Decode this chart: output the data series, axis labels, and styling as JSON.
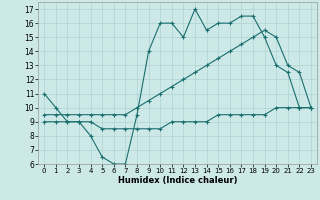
{
  "xlabel": "Humidex (Indice chaleur)",
  "bg_color": "#cce9e8",
  "grid_color": "#aed4d2",
  "line_color": "#1a6e6e",
  "xlim": [
    -0.5,
    23.5
  ],
  "ylim": [
    6,
    17.5
  ],
  "xticks": [
    0,
    1,
    2,
    3,
    4,
    5,
    6,
    7,
    8,
    9,
    10,
    11,
    12,
    13,
    14,
    15,
    16,
    17,
    18,
    19,
    20,
    21,
    22,
    23
  ],
  "yticks": [
    6,
    7,
    8,
    9,
    10,
    11,
    12,
    13,
    14,
    15,
    16,
    17
  ],
  "series": [
    {
      "x": [
        0,
        1,
        2,
        3,
        4,
        5,
        6,
        7,
        8,
        9,
        10,
        11,
        12,
        13,
        14,
        15,
        16,
        17,
        18,
        19,
        20,
        21,
        22,
        23
      ],
      "y": [
        11,
        10,
        9,
        9,
        8,
        6.5,
        6,
        6,
        9.5,
        14,
        16,
        16,
        15,
        17,
        15.5,
        16,
        16,
        16.5,
        16.5,
        15,
        13,
        12.5,
        10,
        10
      ]
    },
    {
      "x": [
        0,
        1,
        2,
        3,
        4,
        5,
        6,
        7,
        8,
        9,
        10,
        11,
        12,
        13,
        14,
        15,
        16,
        17,
        18,
        19,
        20,
        21,
        22,
        23
      ],
      "y": [
        9.5,
        9.5,
        9.5,
        9.5,
        9.5,
        9.5,
        9.5,
        9.5,
        10,
        10.5,
        11,
        11.5,
        12,
        12.5,
        13,
        13.5,
        14,
        14.5,
        15,
        15.5,
        15,
        13,
        12.5,
        10
      ]
    },
    {
      "x": [
        0,
        1,
        2,
        3,
        4,
        5,
        6,
        7,
        8,
        9,
        10,
        11,
        12,
        13,
        14,
        15,
        16,
        17,
        18,
        19,
        20,
        21,
        22,
        23
      ],
      "y": [
        9,
        9,
        9,
        9,
        9,
        8.5,
        8.5,
        8.5,
        8.5,
        8.5,
        8.5,
        9,
        9,
        9,
        9,
        9.5,
        9.5,
        9.5,
        9.5,
        9.5,
        10,
        10,
        10,
        10
      ]
    }
  ]
}
